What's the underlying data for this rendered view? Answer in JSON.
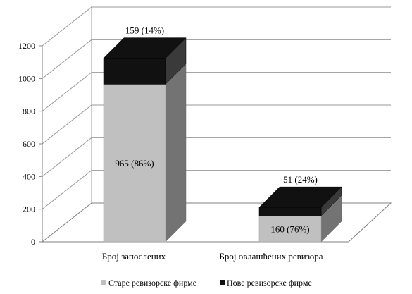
{
  "chart_data": {
    "type": "bar",
    "stacked": true,
    "three_d": true,
    "categories": [
      "Број запослених",
      "Број овлашћених ревизора"
    ],
    "series": [
      {
        "name": "Старе ревизорске фирме",
        "values": [
          965,
          160
        ],
        "labels": [
          "965 (86%)",
          "160 (76%)"
        ],
        "color": "#c0c0c0"
      },
      {
        "name": "Нове ревизорске фирме",
        "values": [
          159,
          51
        ],
        "labels": [
          "159 (14%)",
          "51 (24%)"
        ],
        "color": "#111111"
      }
    ],
    "yticks": [
      "0",
      "200",
      "400",
      "600",
      "800",
      "1000",
      "1200"
    ],
    "ylim": [
      0,
      1200
    ],
    "grid": true,
    "legend_position": "bottom"
  }
}
